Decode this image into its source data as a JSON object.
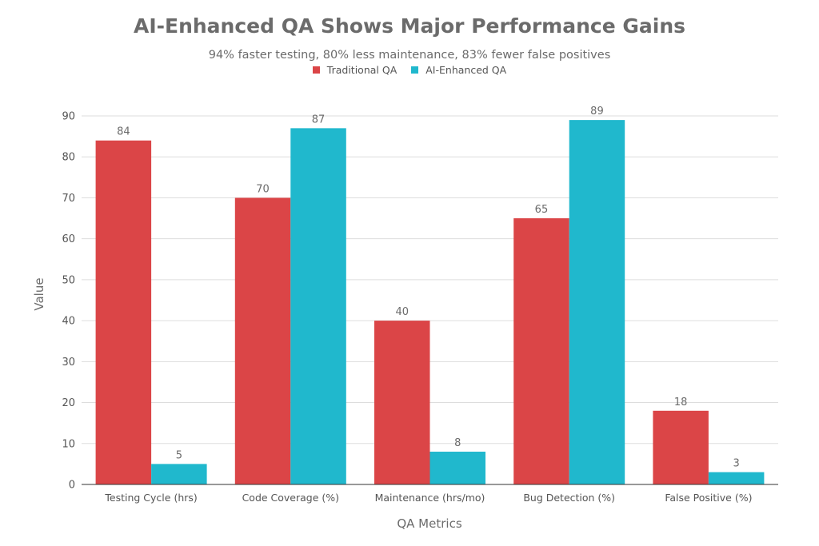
{
  "chart_data": {
    "type": "bar",
    "title": "AI-Enhanced QA Shows Major Performance Gains",
    "subtitle": "94% faster testing, 80% less maintenance, 83% fewer false positives",
    "xlabel": "QA Metrics",
    "ylabel": "Value",
    "categories": [
      "Testing Cycle (hrs)",
      "Code Coverage (%)",
      "Maintenance (hrs/mo)",
      "Bug Detection (%)",
      "False Positive (%)"
    ],
    "series": [
      {
        "name": "Traditional QA",
        "color": "#db4547",
        "values": [
          84,
          70,
          40,
          65,
          18
        ]
      },
      {
        "name": "AI-Enhanced QA",
        "color": "#20b8cd",
        "values": [
          5,
          87,
          8,
          89,
          3
        ]
      }
    ],
    "ylim": [
      0,
      90
    ],
    "yticks": [
      0,
      10,
      20,
      30,
      40,
      50,
      60,
      70,
      80,
      90
    ],
    "grid": true,
    "legend_position": "top-center"
  }
}
